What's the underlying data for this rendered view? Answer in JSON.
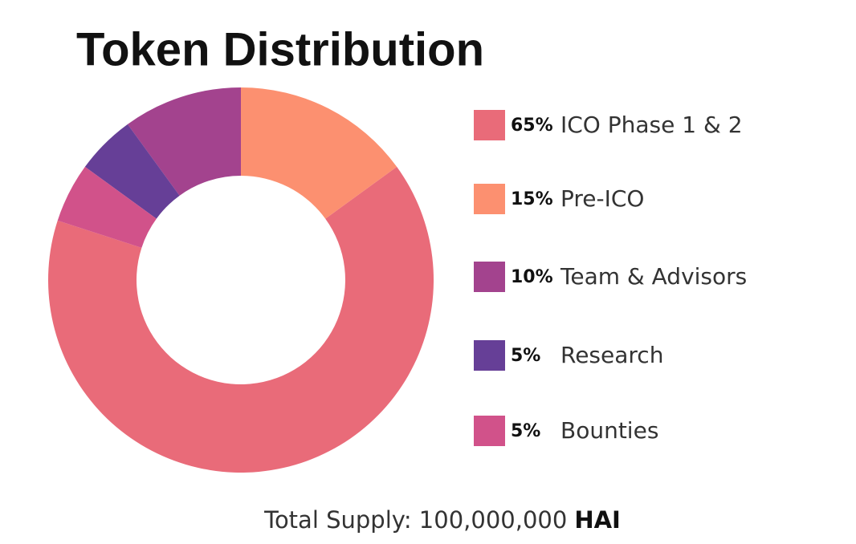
{
  "chart_data": {
    "type": "pie",
    "title": "Token Distribution",
    "categories": [
      "ICO Phase 1 & 2",
      "Pre-ICO",
      "Team & Advisors",
      "Research",
      "Bounties"
    ],
    "values": [
      65,
      15,
      10,
      5,
      5
    ],
    "value_labels": [
      "65%",
      "15%",
      "10%",
      "5%",
      "5%"
    ],
    "colors": [
      "#e96b79",
      "#fc9070",
      "#a3438e",
      "#663f97",
      "#d1528a"
    ],
    "donut": true,
    "annotation": {
      "text": "Total Supply: 100,000,000",
      "unit": "HAI"
    }
  }
}
